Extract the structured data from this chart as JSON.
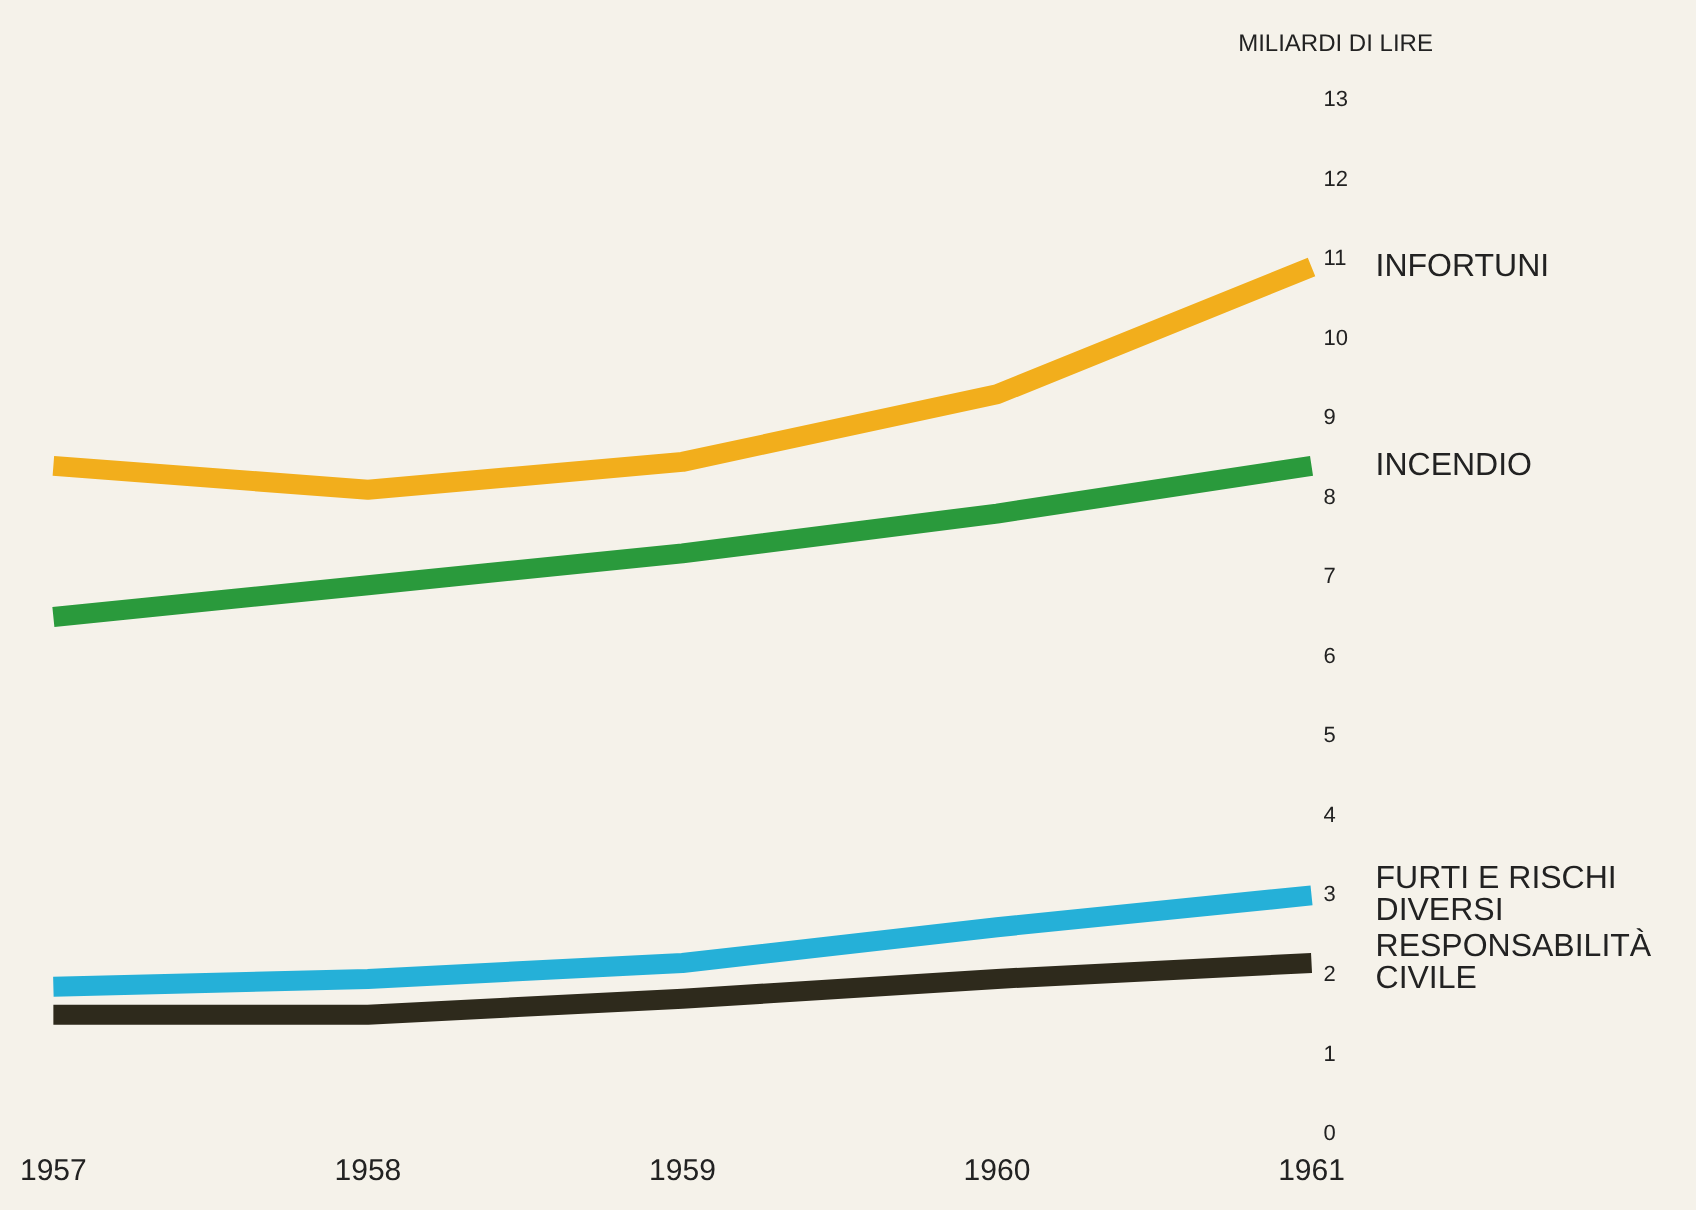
{
  "chart_data": {
    "type": "line",
    "ylabel": "MILIARDI DI LIRE",
    "categories": [
      "1957",
      "1958",
      "1959",
      "1960",
      "1961"
    ],
    "series": [
      {
        "name": "INFORTUNI",
        "color": "#f2ae1c",
        "values": [
          8.4,
          8.1,
          8.45,
          9.3,
          10.9
        ]
      },
      {
        "name": "INCENDIO",
        "color": "#2a9a3c",
        "values": [
          6.5,
          6.9,
          7.3,
          7.8,
          8.4
        ]
      },
      {
        "name": "FURTI E RISCHI DIVERSI",
        "color": "#25b0d8",
        "values": [
          1.85,
          1.95,
          2.15,
          2.6,
          3.0
        ]
      },
      {
        "name": "RESPONSABILITÀ CIVILE",
        "color": "#2e2a1c",
        "values": [
          1.5,
          1.5,
          1.7,
          1.95,
          2.15
        ]
      }
    ],
    "ylim": [
      0,
      13
    ],
    "yticks": [
      0,
      1,
      2,
      3,
      4,
      5,
      6,
      7,
      8,
      9,
      10,
      11,
      12,
      13
    ],
    "grid": false,
    "legend": false,
    "marker": "none",
    "line_style": "solid"
  }
}
